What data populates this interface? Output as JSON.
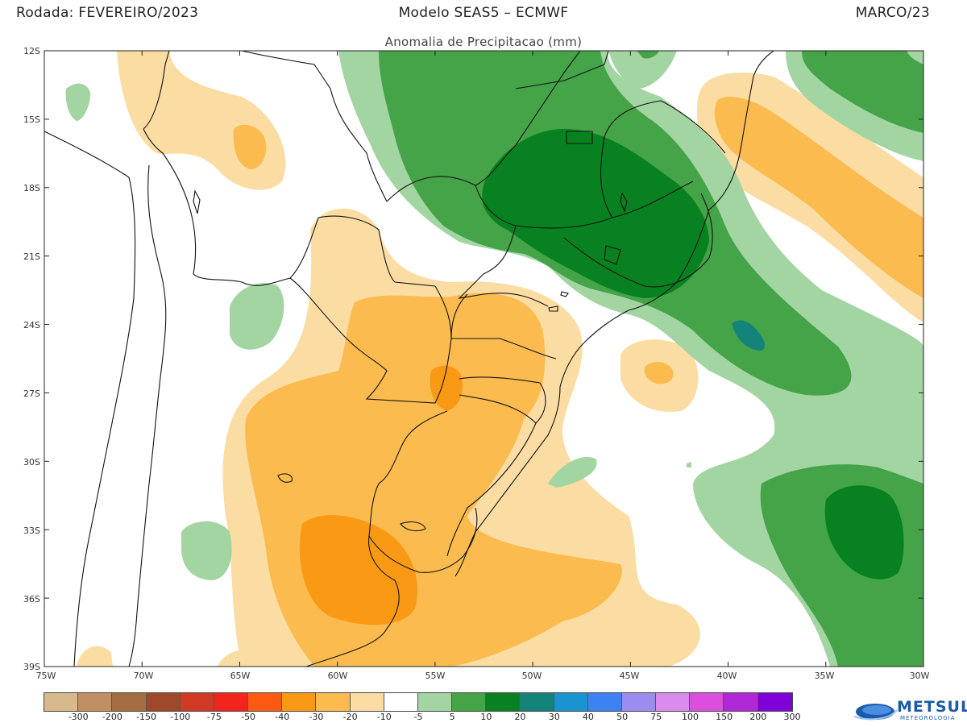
{
  "header": {
    "left": "Rodada: FEVEREIRO/2023",
    "center": "Modelo SEAS5 – ECMWF",
    "right": "MARCO/23"
  },
  "subtitle": "Anomalia de Precipitacao (mm)",
  "axes": {
    "lat_labels": [
      "12S",
      "15S",
      "18S",
      "21S",
      "24S",
      "27S",
      "30S",
      "33S",
      "36S",
      "39S"
    ],
    "lon_labels": [
      "75W",
      "70W",
      "65W",
      "60W",
      "55W",
      "50W",
      "45W",
      "40W",
      "35W",
      "30W"
    ]
  },
  "legend": {
    "colors": [
      "#d8b98c",
      "#c09064",
      "#a46e40",
      "#a0482a",
      "#d03a25",
      "#f2251c",
      "#fb5a10",
      "#fa9a14",
      "#fcbb4e",
      "#fbdda4",
      "#ffffff",
      "#a2d5a2",
      "#45a348",
      "#088220",
      "#14847a",
      "#1a94d0",
      "#3c82f2",
      "#9b8cef",
      "#d98bee",
      "#da4fdc",
      "#b128d6",
      "#8000d8"
    ],
    "labels": [
      "-300",
      "-200",
      "-150",
      "-100",
      "-75",
      "-50",
      "-40",
      "-30",
      "-20",
      "-10",
      "-5",
      "5",
      "10",
      "20",
      "30",
      "40",
      "50",
      "75",
      "100",
      "150",
      "200",
      "300"
    ]
  },
  "logo": {
    "name": "METSUL",
    "tagline": "METEOROLOGIA",
    "icon": "globe-swoosh-icon"
  }
}
